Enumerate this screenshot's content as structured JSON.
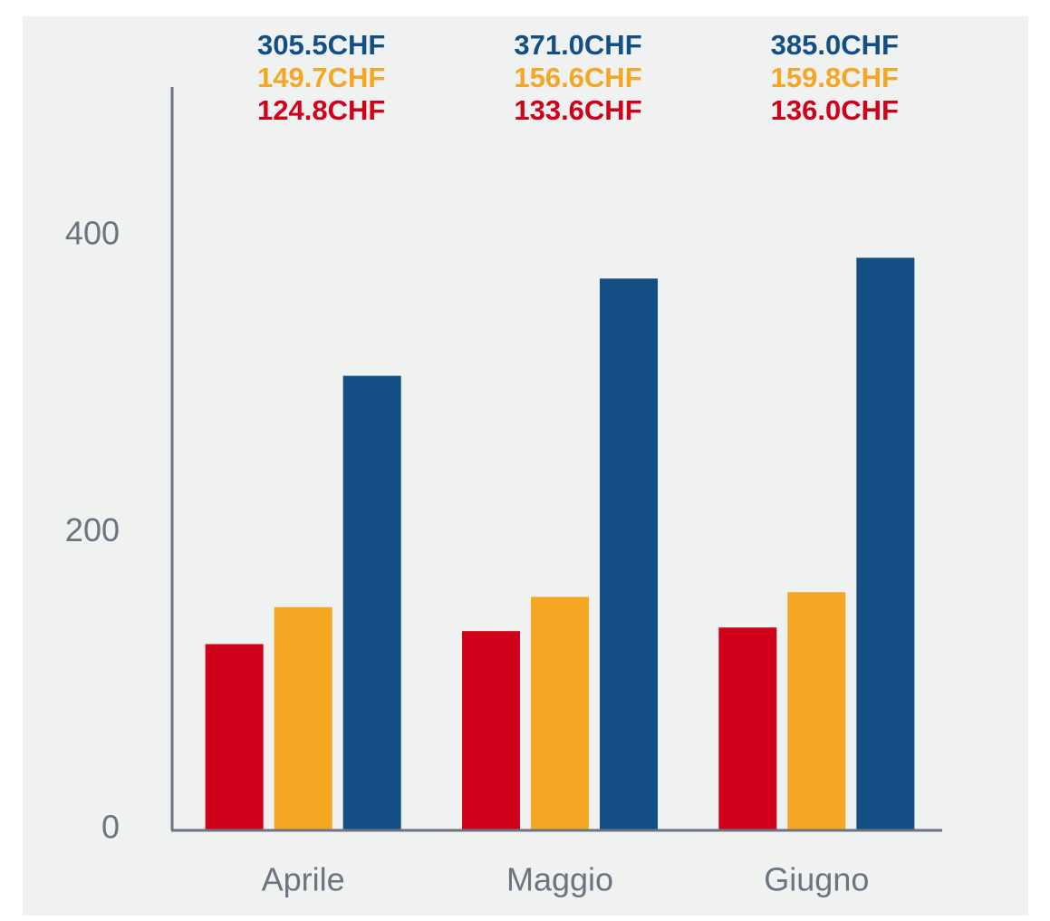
{
  "chart_data": {
    "type": "bar",
    "categories": [
      "Aprile",
      "Maggio",
      "Giugno"
    ],
    "series": [
      {
        "color": "#d0021b",
        "values": [
          124.8,
          133.6,
          136.0
        ],
        "value_labels": [
          "124.8CHF",
          "133.6CHF",
          "136.0CHF"
        ]
      },
      {
        "color": "#f5a623",
        "values": [
          149.7,
          156.6,
          159.8
        ],
        "value_labels": [
          "149.7CHF",
          "156.6CHF",
          "159.8CHF"
        ]
      },
      {
        "color": "#134f85",
        "values": [
          305.5,
          371.0,
          385.0
        ],
        "value_labels": [
          "305.5CHF",
          "371.0CHF",
          "385.0CHF"
        ]
      }
    ],
    "ylim": [
      0,
      500
    ],
    "yticks": [
      0,
      200,
      400
    ],
    "grid": false
  }
}
